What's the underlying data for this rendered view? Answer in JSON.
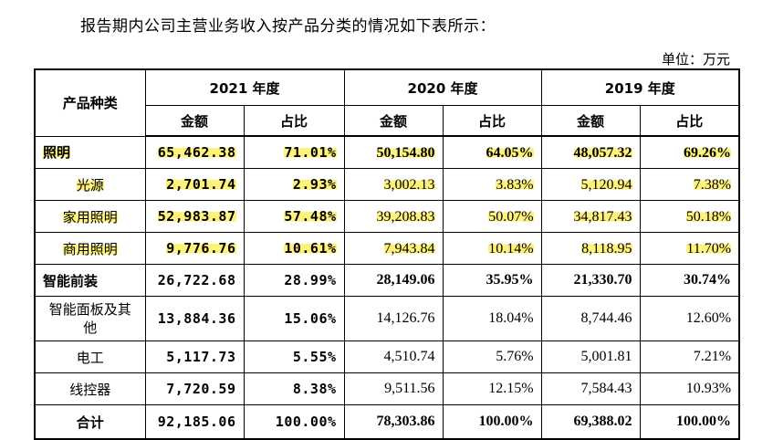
{
  "intro": "报告期内公司主营业务收入按产品分类的情况如下表所示：",
  "unit": "单位：万元",
  "header": {
    "category": "产品种类",
    "years": [
      "2021 年度",
      "2020 年度",
      "2019 年度"
    ],
    "amount": "金额",
    "ratio": "占比"
  },
  "rows": [
    {
      "name": "照明",
      "v": [
        "65,462.38",
        "71.01%",
        "50,154.80",
        "64.05%",
        "48,057.32",
        "69.26%"
      ]
    },
    {
      "name": "光源",
      "v": [
        "2,701.74",
        "2.93%",
        "3,002.13",
        "3.83%",
        "5,120.94",
        "7.38%"
      ]
    },
    {
      "name": "家用照明",
      "v": [
        "52,983.87",
        "57.48%",
        "39,208.83",
        "50.07%",
        "34,817.43",
        "50.18%"
      ]
    },
    {
      "name": "商用照明",
      "v": [
        "9,776.76",
        "10.61%",
        "7,943.84",
        "10.14%",
        "8,118.95",
        "11.70%"
      ]
    },
    {
      "name": "智能前装",
      "v": [
        "26,722.68",
        "28.99%",
        "28,149.06",
        "35.95%",
        "21,330.70",
        "30.74%"
      ]
    },
    {
      "name": "智能面板及其他",
      "v": [
        "13,884.36",
        "15.06%",
        "14,126.76",
        "18.04%",
        "8,744.46",
        "12.60%"
      ]
    },
    {
      "name": "电工",
      "v": [
        "5,117.73",
        "5.55%",
        "4,510.74",
        "5.76%",
        "5,001.81",
        "7.21%"
      ]
    },
    {
      "name": "线控器",
      "v": [
        "7,720.59",
        "8.38%",
        "9,511.56",
        "12.15%",
        "7,584.43",
        "10.93%"
      ]
    },
    {
      "name": "合计",
      "v": [
        "92,185.06",
        "100.00%",
        "78,303.86",
        "100.00%",
        "69,388.02",
        "100.00%"
      ]
    }
  ]
}
